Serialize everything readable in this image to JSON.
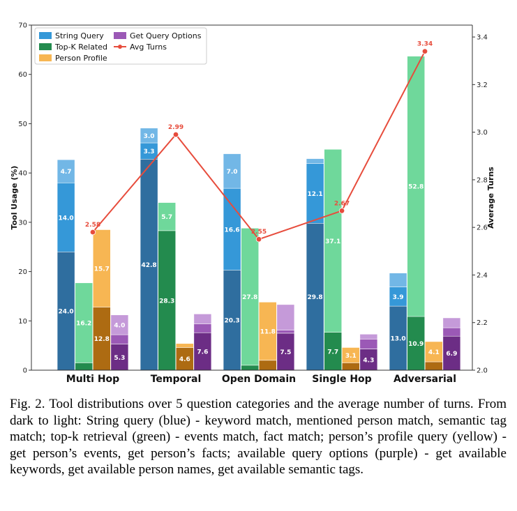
{
  "chart_data": {
    "type": "bar",
    "categories": [
      "Multi Hop",
      "Temporal",
      "Open Domain",
      "Single Hop",
      "Adversarial"
    ],
    "ylabel": "Tool Usage (%)",
    "y2label": "Average Turns",
    "ylim": [
      0,
      70
    ],
    "y2lim": [
      2.0,
      3.45
    ],
    "yticks": [
      "0",
      "10",
      "20",
      "30",
      "40",
      "50",
      "60",
      "70"
    ],
    "y2ticks": [
      "2.0",
      "2.2",
      "2.4",
      "2.6",
      "2.8",
      "3.0",
      "3.2",
      "3.4"
    ],
    "grid": false,
    "legend_position": "top-left",
    "legend": [
      "String Query",
      "Top-K Related",
      "Person Profile",
      "Get Query Options",
      "Avg Turns"
    ],
    "series": [
      {
        "name": "String Query",
        "colors": [
          "#2f6e9f",
          "#3598d8",
          "#72b7e6"
        ],
        "stacks": [
          [
            24.0,
            14.0,
            4.7
          ],
          [
            42.8,
            3.3,
            3.0
          ],
          [
            20.3,
            16.6,
            7.0
          ],
          [
            29.8,
            12.1,
            1.0
          ],
          [
            13.0,
            3.9,
            2.8
          ]
        ],
        "labels": [
          [
            "24.0",
            "14.0",
            "4.7"
          ],
          [
            "42.8",
            "3.3",
            "3.0"
          ],
          [
            "20.3",
            "16.6",
            "7.0"
          ],
          [
            "29.8",
            "12.1",
            ""
          ],
          [
            "13.0",
            "3.9",
            ""
          ]
        ]
      },
      {
        "name": "Top-K Related",
        "colors": [
          "#238b4e",
          "#6fd89b"
        ],
        "stacks": [
          [
            1.5,
            16.2
          ],
          [
            28.3,
            5.7
          ],
          [
            1.0,
            27.8
          ],
          [
            7.7,
            37.1
          ],
          [
            10.9,
            52.8
          ]
        ],
        "labels": [
          [
            "",
            "16.2"
          ],
          [
            "28.3",
            "5.7"
          ],
          [
            "",
            "27.8"
          ],
          [
            "7.7",
            "37.1"
          ],
          [
            "10.9",
            "52.8"
          ]
        ]
      },
      {
        "name": "Person Profile",
        "colors": [
          "#ad6b12",
          "#f7b653"
        ],
        "stacks": [
          [
            12.8,
            15.7
          ],
          [
            4.6,
            0.8
          ],
          [
            2.0,
            11.8
          ],
          [
            1.5,
            3.1
          ],
          [
            1.7,
            4.1
          ]
        ],
        "labels": [
          [
            "12.8",
            "15.7"
          ],
          [
            "4.6",
            ""
          ],
          [
            "",
            "11.8"
          ],
          [
            "",
            "3.1"
          ],
          [
            "",
            "4.1"
          ]
        ]
      },
      {
        "name": "Get Query Options",
        "colors": [
          "#6c2d85",
          "#9b59b6",
          "#c59ad9"
        ],
        "stacks": [
          [
            5.3,
            1.9,
            4.0
          ],
          [
            7.6,
            1.8,
            2.0
          ],
          [
            7.5,
            0.6,
            5.2
          ],
          [
            4.3,
            2.0,
            1.0
          ],
          [
            6.9,
            1.7,
            2.0
          ]
        ],
        "labels": [
          [
            "5.3",
            "",
            "4.0"
          ],
          [
            "7.6",
            "",
            ""
          ],
          [
            "7.5",
            "",
            ""
          ],
          [
            "4.3",
            "",
            ""
          ],
          [
            "6.9",
            "",
            ""
          ]
        ]
      }
    ],
    "line": {
      "name": "Avg Turns",
      "color": "#e74c3c",
      "values": [
        2.58,
        2.99,
        2.55,
        2.67,
        3.34
      ],
      "labels": [
        "2.58",
        "2.99",
        "2.55",
        "2.67",
        "3.34"
      ]
    }
  },
  "caption": "Fig. 2.   Tool distributions over 5 question categories and the average number of turns. From dark to light: String query (blue) - keyword match, mentioned person match, semantic tag match; top-k retrieval (green) - events match, fact match; person’s profile query (yellow) - get person’s events, get person’s facts; available query options (purple) - get available keywords, get available person names, get available semantic tags."
}
